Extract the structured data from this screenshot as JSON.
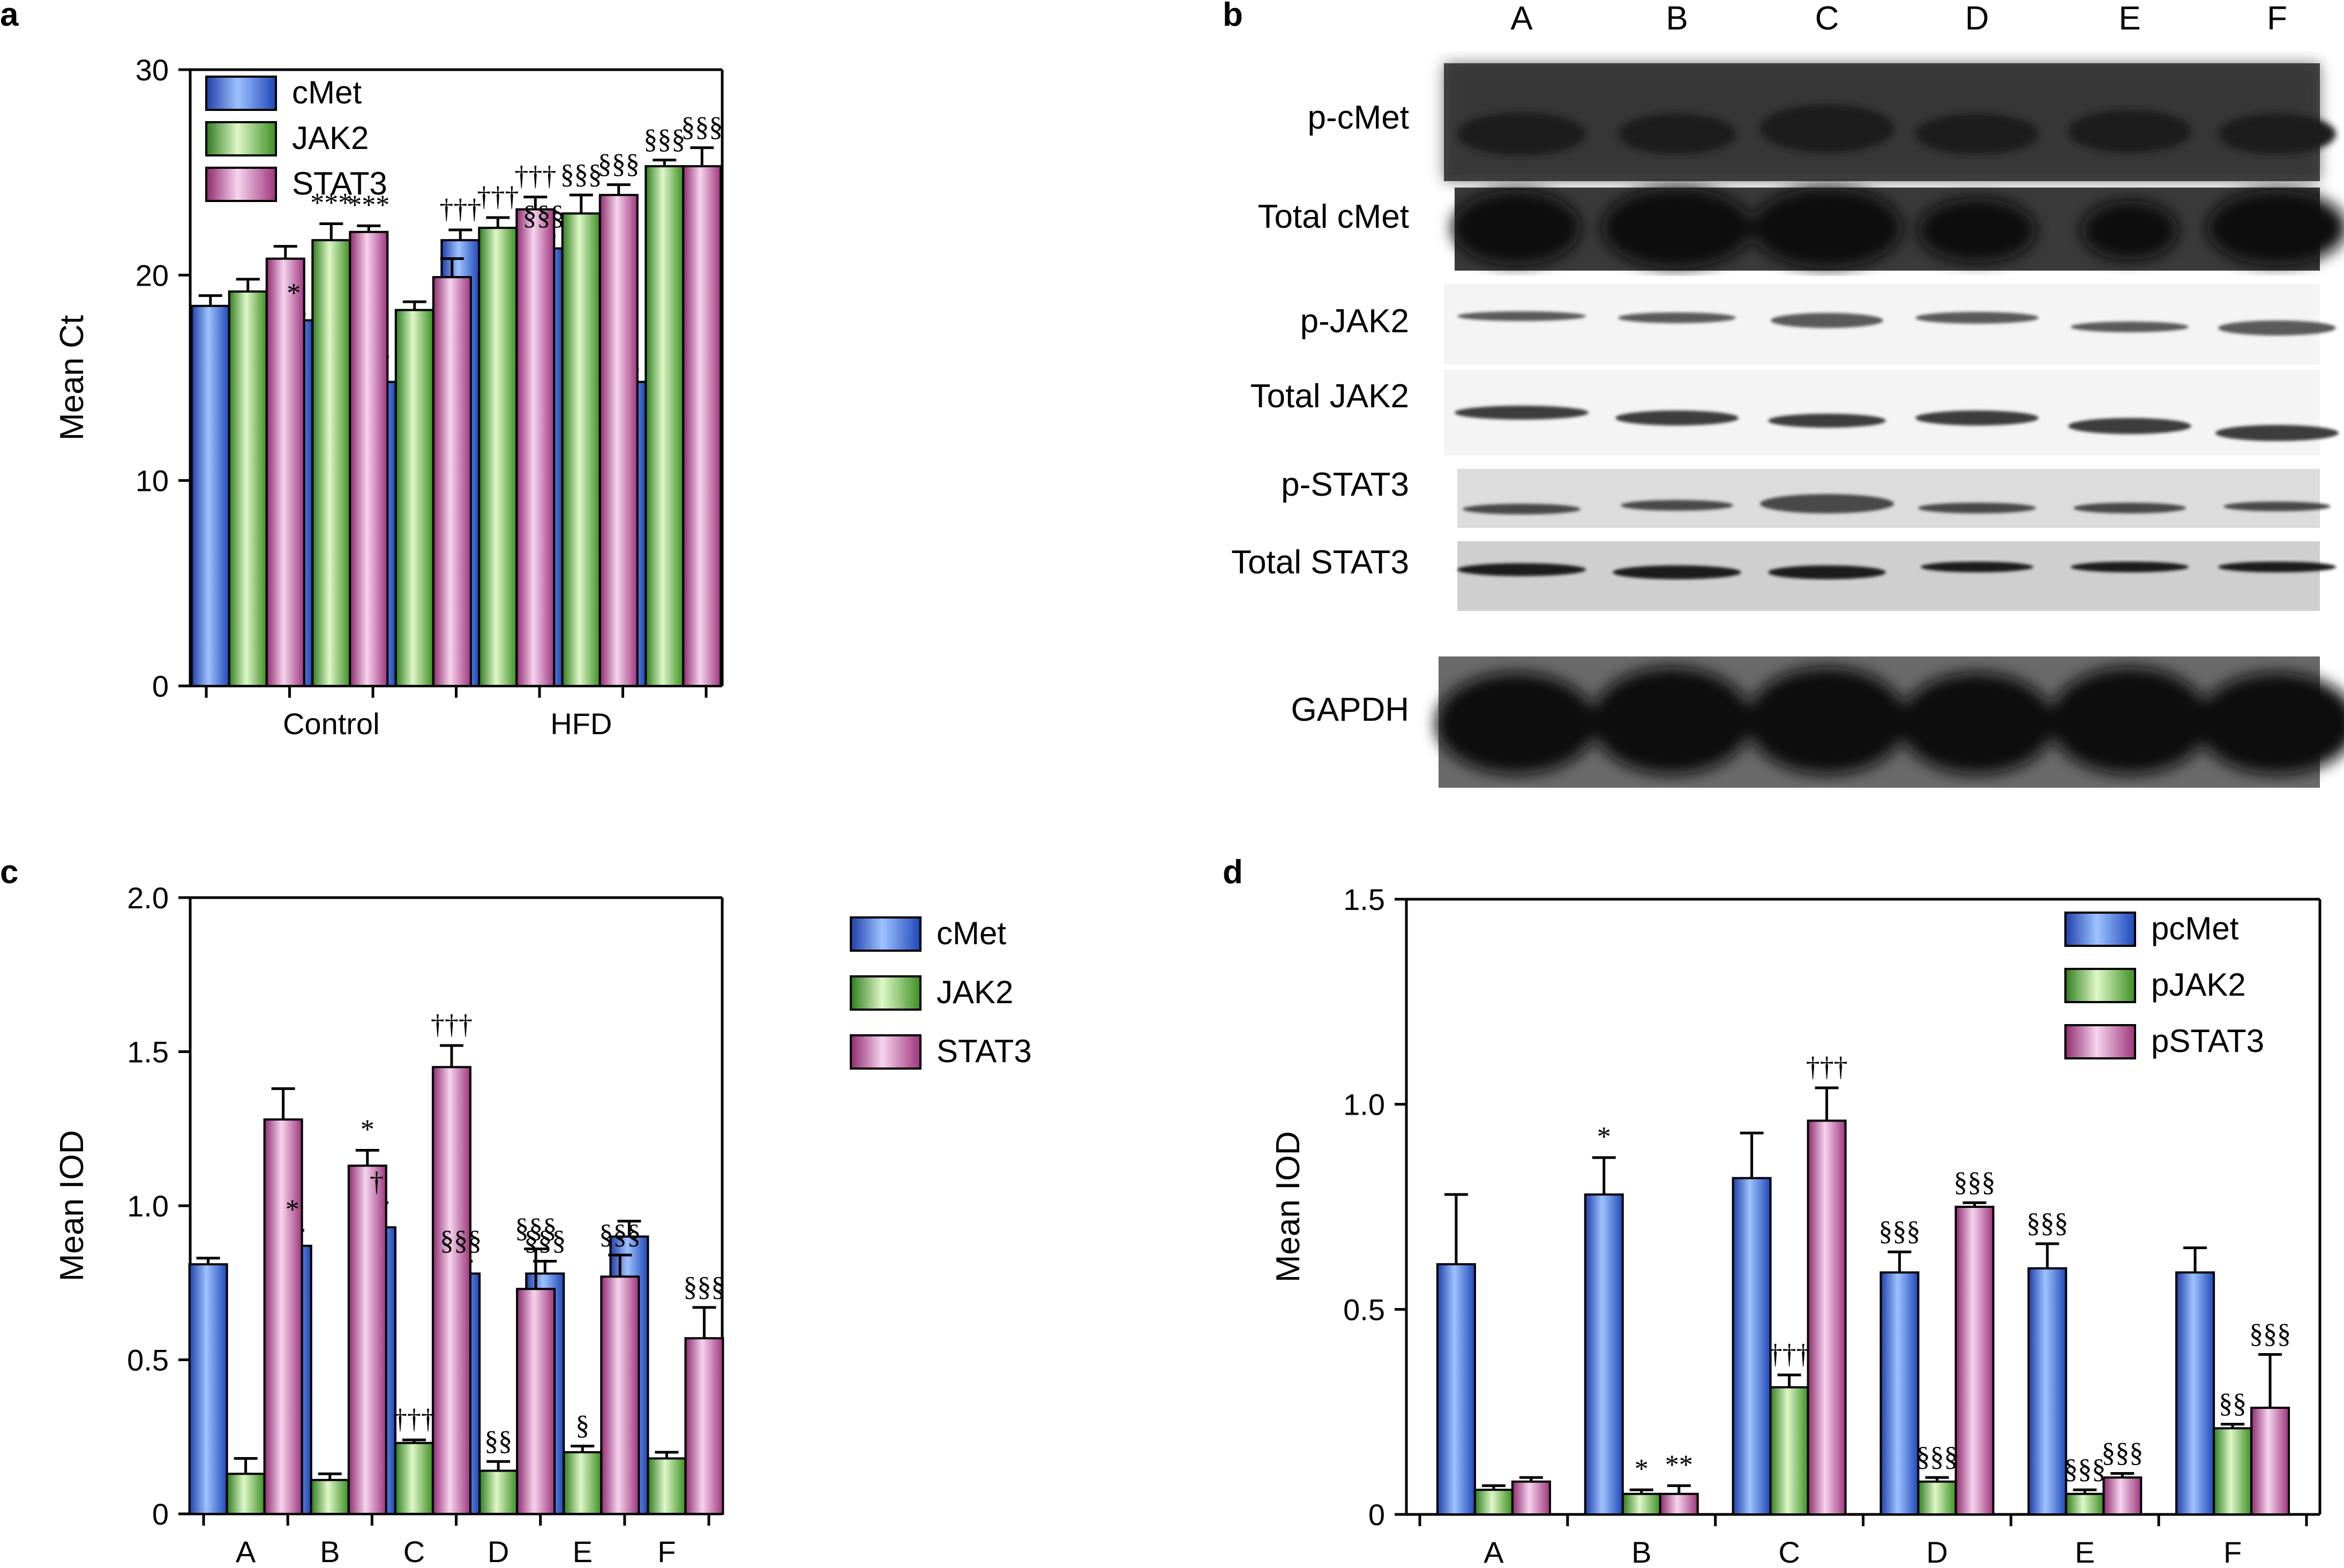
{
  "colors": {
    "cMet": "#2a5fd0",
    "JAK2": "#4aa52a",
    "STAT3": "#b0468e"
  },
  "chart_data": [
    {
      "panel": "a",
      "type": "bar",
      "ylabel": "Mean Ct",
      "ylim": [
        0,
        30
      ],
      "yticks": [
        0,
        10,
        20,
        30
      ],
      "group_labels": [
        {
          "label": "Control",
          "center_bar": 1
        },
        {
          "label": "HFD",
          "center_bar": 4
        }
      ],
      "bar_groups": 6,
      "series": [
        {
          "name": "cMet",
          "values": [
            18.5,
            17.8,
            14.8,
            21.7,
            21.3,
            14.8
          ],
          "errors": [
            0.5,
            0.3,
            1.2,
            0.5,
            0.6,
            0.6
          ]
        },
        {
          "name": "JAK2",
          "values": [
            19.2,
            21.7,
            18.3,
            22.3,
            23.0,
            25.3
          ],
          "errors": [
            0.6,
            0.8,
            0.4,
            0.5,
            0.9,
            0.3
          ]
        },
        {
          "name": "STAT3",
          "values": [
            20.8,
            22.1,
            19.9,
            23.2,
            23.9,
            25.3
          ],
          "errors": [
            0.6,
            0.3,
            0.9,
            0.6,
            0.5,
            0.9
          ]
        }
      ],
      "annotations": [
        {
          "group": 1,
          "series": 0,
          "text": "*"
        },
        {
          "group": 1,
          "series": 1,
          "text": "***"
        },
        {
          "group": 1,
          "series": 2,
          "text": "***"
        },
        {
          "group": 3,
          "series": 0,
          "text": "†††"
        },
        {
          "group": 3,
          "series": 1,
          "text": "†††"
        },
        {
          "group": 3,
          "series": 2,
          "text": "†††"
        },
        {
          "group": 4,
          "series": 0,
          "text": "§§§"
        },
        {
          "group": 4,
          "series": 1,
          "text": "§§§"
        },
        {
          "group": 4,
          "series": 2,
          "text": "§§§"
        },
        {
          "group": 5,
          "series": 1,
          "text": "§§§"
        },
        {
          "group": 5,
          "series": 2,
          "text": "§§§"
        }
      ],
      "legend": [
        "cMet",
        "JAK2",
        "STAT3"
      ],
      "legend_position": "top-left"
    },
    {
      "panel": "c",
      "type": "bar",
      "ylabel": "Mean IOD",
      "ylim": [
        0,
        2.0
      ],
      "yticks": [
        "0",
        "0.5",
        "1.0",
        "1.5",
        "2.0"
      ],
      "categories": [
        "A",
        "B",
        "C",
        "D",
        "E",
        "F"
      ],
      "series": [
        {
          "name": "cMet",
          "values": [
            0.81,
            0.87,
            0.93,
            0.78,
            0.78,
            0.9
          ],
          "errors": [
            0.02,
            0.05,
            0.08,
            0.04,
            0.04,
            0.05
          ]
        },
        {
          "name": "JAK2",
          "values": [
            0.13,
            0.11,
            0.23,
            0.14,
            0.2,
            0.18
          ],
          "errors": [
            0.05,
            0.02,
            0.01,
            0.03,
            0.02,
            0.02
          ]
        },
        {
          "name": "STAT3",
          "values": [
            1.28,
            1.13,
            1.45,
            0.73,
            0.77,
            0.57
          ],
          "errors": [
            0.1,
            0.05,
            0.07,
            0.13,
            0.07,
            0.1
          ]
        }
      ],
      "annotations": [
        {
          "group": 1,
          "series": 0,
          "text": "*"
        },
        {
          "group": 1,
          "series": 2,
          "text": "*"
        },
        {
          "group": 2,
          "series": 0,
          "text": "†"
        },
        {
          "group": 2,
          "series": 1,
          "text": "†††"
        },
        {
          "group": 2,
          "series": 2,
          "text": "†††"
        },
        {
          "group": 3,
          "series": 0,
          "text": "§§§"
        },
        {
          "group": 3,
          "series": 1,
          "text": "§§"
        },
        {
          "group": 3,
          "series": 2,
          "text": "§§§"
        },
        {
          "group": 4,
          "series": 0,
          "text": "§§§"
        },
        {
          "group": 4,
          "series": 1,
          "text": "§"
        },
        {
          "group": 4,
          "series": 2,
          "text": "§§§"
        },
        {
          "group": 5,
          "series": 2,
          "text": "§§§"
        }
      ],
      "legend": [
        "cMet",
        "JAK2",
        "STAT3"
      ],
      "legend_position": "top-right"
    },
    {
      "panel": "d",
      "type": "bar",
      "ylabel": "Mean IOD",
      "ylim": [
        0,
        1.5
      ],
      "yticks": [
        "0",
        "0.5",
        "1.0",
        "1.5"
      ],
      "categories": [
        "A",
        "B",
        "C",
        "D",
        "E",
        "F"
      ],
      "series": [
        {
          "name": "pcMet",
          "values": [
            0.61,
            0.78,
            0.82,
            0.59,
            0.6,
            0.59
          ],
          "errors": [
            0.17,
            0.09,
            0.11,
            0.05,
            0.06,
            0.06
          ]
        },
        {
          "name": "pJAK2",
          "values": [
            0.06,
            0.05,
            0.31,
            0.08,
            0.05,
            0.21
          ],
          "errors": [
            0.01,
            0.01,
            0.03,
            0.01,
            0.01,
            0.01
          ]
        },
        {
          "name": "pSTAT3",
          "values": [
            0.08,
            0.05,
            0.96,
            0.75,
            0.09,
            0.26
          ],
          "errors": [
            0.01,
            0.02,
            0.08,
            0.01,
            0.01,
            0.13
          ]
        }
      ],
      "annotations": [
        {
          "group": 1,
          "series": 0,
          "text": "*"
        },
        {
          "group": 1,
          "series": 1,
          "text": "*"
        },
        {
          "group": 1,
          "series": 2,
          "text": "**"
        },
        {
          "group": 2,
          "series": 1,
          "text": "†††"
        },
        {
          "group": 2,
          "series": 2,
          "text": "†††"
        },
        {
          "group": 3,
          "series": 0,
          "text": "§§§"
        },
        {
          "group": 3,
          "series": 1,
          "text": "§§§"
        },
        {
          "group": 3,
          "series": 2,
          "text": "§§§"
        },
        {
          "group": 4,
          "series": 0,
          "text": "§§§"
        },
        {
          "group": 4,
          "series": 1,
          "text": "§§§"
        },
        {
          "group": 4,
          "series": 2,
          "text": "§§§"
        },
        {
          "group": 5,
          "series": 1,
          "text": "§§"
        },
        {
          "group": 5,
          "series": 2,
          "text": "§§§"
        }
      ],
      "legend": [
        "pcMet",
        "pJAK2",
        "pSTAT3"
      ],
      "legend_position": "top-right"
    }
  ],
  "panels": {
    "a": "a",
    "b": "b",
    "c": "c",
    "d": "d"
  },
  "blot": {
    "lanes": [
      "A",
      "B",
      "C",
      "D",
      "E",
      "F"
    ],
    "rows": [
      "p-cMet",
      "Total cMet",
      "p-JAK2",
      "Total JAK2",
      "p-STAT3",
      "Total STAT3",
      "GAPDH"
    ]
  }
}
